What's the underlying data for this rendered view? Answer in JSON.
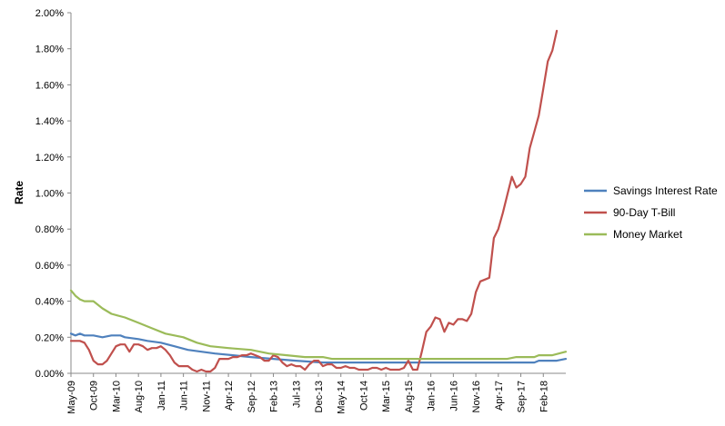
{
  "chart_data": {
    "type": "line",
    "title": "",
    "xlabel": "",
    "ylabel": "Rate",
    "ylim": [
      0,
      0.02
    ],
    "yticks": [
      "0.00%",
      "0.20%",
      "0.40%",
      "0.60%",
      "0.80%",
      "1.00%",
      "1.20%",
      "1.40%",
      "1.60%",
      "1.80%",
      "2.00%"
    ],
    "grid": false,
    "legend_position": "right",
    "x_tick_labels": [
      "May-09",
      "Oct-09",
      "Mar-10",
      "Aug-10",
      "Jan-11",
      "Jun-11",
      "Nov-11",
      "Apr-12",
      "Sep-12",
      "Feb-13",
      "Jul-13",
      "Dec-13",
      "May-14",
      "Oct-14",
      "Mar-15",
      "Aug-15",
      "Jan-16",
      "Jun-16",
      "Nov-16",
      "Apr-17",
      "Sep-17",
      "Feb-18"
    ],
    "x_start": "2009-05",
    "x_end": "2018-07",
    "series": [
      {
        "name": "Savings Interest Rate",
        "color": "#4F81BD",
        "points": [
          [
            "2009-05",
            0.0022
          ],
          [
            "2009-06",
            0.0021
          ],
          [
            "2009-07",
            0.0022
          ],
          [
            "2009-08",
            0.0021
          ],
          [
            "2009-10",
            0.0021
          ],
          [
            "2009-12",
            0.002
          ],
          [
            "2010-02",
            0.0021
          ],
          [
            "2010-04",
            0.0021
          ],
          [
            "2010-05",
            0.002
          ],
          [
            "2010-08",
            0.0019
          ],
          [
            "2010-10",
            0.0018
          ],
          [
            "2011-01",
            0.0017
          ],
          [
            "2011-04",
            0.0015
          ],
          [
            "2011-07",
            0.0013
          ],
          [
            "2011-10",
            0.0012
          ],
          [
            "2012-01",
            0.0011
          ],
          [
            "2012-05",
            0.001
          ],
          [
            "2012-09",
            0.0009
          ],
          [
            "2013-02",
            0.0008
          ],
          [
            "2013-07",
            0.0007
          ],
          [
            "2014-01",
            0.0006
          ],
          [
            "2015-01",
            0.0006
          ],
          [
            "2016-01",
            0.0006
          ],
          [
            "2017-01",
            0.0006
          ],
          [
            "2017-12",
            0.0006
          ],
          [
            "2018-01",
            0.0007
          ],
          [
            "2018-05",
            0.0007
          ],
          [
            "2018-07",
            0.0008
          ]
        ]
      },
      {
        "name": "90-Day T-Bill",
        "color": "#C0504D",
        "points": [
          [
            "2009-05",
            0.0018
          ],
          [
            "2009-06",
            0.0018
          ],
          [
            "2009-07",
            0.0018
          ],
          [
            "2009-08",
            0.0017
          ],
          [
            "2009-09",
            0.0013
          ],
          [
            "2009-10",
            0.0007
          ],
          [
            "2009-11",
            0.0005
          ],
          [
            "2009-12",
            0.0005
          ],
          [
            "2010-01",
            0.0007
          ],
          [
            "2010-02",
            0.0011
          ],
          [
            "2010-03",
            0.0015
          ],
          [
            "2010-04",
            0.0016
          ],
          [
            "2010-05",
            0.0016
          ],
          [
            "2010-06",
            0.0012
          ],
          [
            "2010-07",
            0.0016
          ],
          [
            "2010-08",
            0.0016
          ],
          [
            "2010-09",
            0.0015
          ],
          [
            "2010-10",
            0.0013
          ],
          [
            "2010-11",
            0.0014
          ],
          [
            "2010-12",
            0.0014
          ],
          [
            "2011-01",
            0.0015
          ],
          [
            "2011-02",
            0.0013
          ],
          [
            "2011-03",
            0.001
          ],
          [
            "2011-04",
            0.0006
          ],
          [
            "2011-05",
            0.0004
          ],
          [
            "2011-06",
            0.0004
          ],
          [
            "2011-07",
            0.0004
          ],
          [
            "2011-08",
            0.0002
          ],
          [
            "2011-09",
            0.0001
          ],
          [
            "2011-10",
            0.0002
          ],
          [
            "2011-11",
            0.0001
          ],
          [
            "2011-12",
            0.0001
          ],
          [
            "2012-01",
            0.0003
          ],
          [
            "2012-02",
            0.0008
          ],
          [
            "2012-03",
            0.0008
          ],
          [
            "2012-04",
            0.0008
          ],
          [
            "2012-05",
            0.0009
          ],
          [
            "2012-06",
            0.0009
          ],
          [
            "2012-07",
            0.001
          ],
          [
            "2012-08",
            0.001
          ],
          [
            "2012-09",
            0.0011
          ],
          [
            "2012-10",
            0.001
          ],
          [
            "2012-11",
            0.0009
          ],
          [
            "2012-12",
            0.0007
          ],
          [
            "2013-01",
            0.0007
          ],
          [
            "2013-02",
            0.001
          ],
          [
            "2013-03",
            0.0009
          ],
          [
            "2013-04",
            0.0006
          ],
          [
            "2013-05",
            0.0004
          ],
          [
            "2013-06",
            0.0005
          ],
          [
            "2013-07",
            0.0004
          ],
          [
            "2013-08",
            0.0004
          ],
          [
            "2013-09",
            0.0002
          ],
          [
            "2013-10",
            0.0005
          ],
          [
            "2013-11",
            0.0007
          ],
          [
            "2013-12",
            0.0007
          ],
          [
            "2014-01",
            0.0004
          ],
          [
            "2014-02",
            0.0005
          ],
          [
            "2014-03",
            0.0005
          ],
          [
            "2014-04",
            0.0003
          ],
          [
            "2014-05",
            0.0003
          ],
          [
            "2014-06",
            0.0004
          ],
          [
            "2014-07",
            0.0003
          ],
          [
            "2014-08",
            0.0003
          ],
          [
            "2014-09",
            0.0002
          ],
          [
            "2014-10",
            0.0002
          ],
          [
            "2014-11",
            0.0002
          ],
          [
            "2014-12",
            0.0003
          ],
          [
            "2015-01",
            0.0003
          ],
          [
            "2015-02",
            0.0002
          ],
          [
            "2015-03",
            0.0003
          ],
          [
            "2015-04",
            0.0002
          ],
          [
            "2015-05",
            0.0002
          ],
          [
            "2015-06",
            0.0002
          ],
          [
            "2015-07",
            0.0003
          ],
          [
            "2015-08",
            0.0007
          ],
          [
            "2015-09",
            0.0002
          ],
          [
            "2015-10",
            0.0002
          ],
          [
            "2015-11",
            0.0012
          ],
          [
            "2015-12",
            0.0023
          ],
          [
            "2016-01",
            0.0026
          ],
          [
            "2016-02",
            0.0031
          ],
          [
            "2016-03",
            0.003
          ],
          [
            "2016-04",
            0.0023
          ],
          [
            "2016-05",
            0.0028
          ],
          [
            "2016-06",
            0.0027
          ],
          [
            "2016-07",
            0.003
          ],
          [
            "2016-08",
            0.003
          ],
          [
            "2016-09",
            0.0029
          ],
          [
            "2016-10",
            0.0033
          ],
          [
            "2016-11",
            0.0045
          ],
          [
            "2016-12",
            0.0051
          ],
          [
            "2017-01",
            0.0052
          ],
          [
            "2017-02",
            0.0053
          ],
          [
            "2017-03",
            0.0075
          ],
          [
            "2017-04",
            0.008
          ],
          [
            "2017-05",
            0.0089
          ],
          [
            "2017-06",
            0.0099
          ],
          [
            "2017-07",
            0.0109
          ],
          [
            "2017-08",
            0.0103
          ],
          [
            "2017-09",
            0.0105
          ],
          [
            "2017-10",
            0.0109
          ],
          [
            "2017-11",
            0.0125
          ],
          [
            "2017-12",
            0.0134
          ],
          [
            "2018-01",
            0.0143
          ],
          [
            "2018-02",
            0.0158
          ],
          [
            "2018-03",
            0.0173
          ],
          [
            "2018-04",
            0.0179
          ],
          [
            "2018-05",
            0.019
          ]
        ]
      },
      {
        "name": "Money Market",
        "color": "#9BBB59",
        "points": [
          [
            "2009-05",
            0.0046
          ],
          [
            "2009-06",
            0.0043
          ],
          [
            "2009-07",
            0.0041
          ],
          [
            "2009-08",
            0.004
          ],
          [
            "2009-10",
            0.004
          ],
          [
            "2009-12",
            0.0036
          ],
          [
            "2010-02",
            0.0033
          ],
          [
            "2010-05",
            0.0031
          ],
          [
            "2010-08",
            0.0028
          ],
          [
            "2010-11",
            0.0025
          ],
          [
            "2011-02",
            0.0022
          ],
          [
            "2011-06",
            0.002
          ],
          [
            "2011-09",
            0.0017
          ],
          [
            "2011-12",
            0.0015
          ],
          [
            "2012-04",
            0.0014
          ],
          [
            "2012-09",
            0.0013
          ],
          [
            "2013-01",
            0.0011
          ],
          [
            "2013-05",
            0.001
          ],
          [
            "2013-09",
            0.0009
          ],
          [
            "2014-01",
            0.0009
          ],
          [
            "2014-03",
            0.0008
          ],
          [
            "2015-01",
            0.0008
          ],
          [
            "2016-01",
            0.0008
          ],
          [
            "2017-01",
            0.0008
          ],
          [
            "2017-06",
            0.0008
          ],
          [
            "2017-08",
            0.0009
          ],
          [
            "2017-12",
            0.0009
          ],
          [
            "2018-01",
            0.001
          ],
          [
            "2018-04",
            0.001
          ],
          [
            "2018-07",
            0.0012
          ]
        ]
      }
    ]
  }
}
